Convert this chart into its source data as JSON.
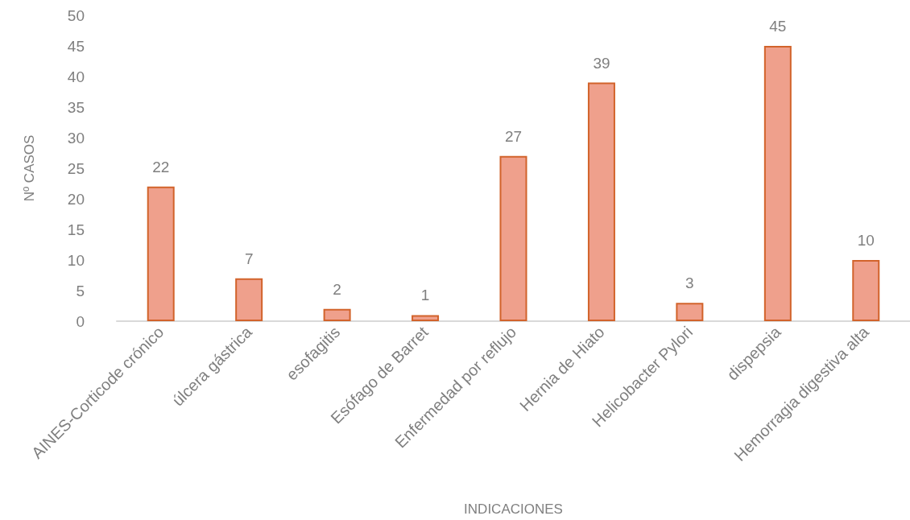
{
  "chart_data": {
    "type": "bar",
    "categories": [
      "AINES-Corticode crónico",
      "úlcera gástrica",
      "esofagitis",
      "Esófago de Barret",
      "Enfermedad por reflujo",
      "Hernia de Hiato",
      "Helicobacter Pylori",
      "dispepsia",
      "Hemorragia digestiva alta"
    ],
    "values": [
      22,
      7,
      2,
      1,
      27,
      39,
      3,
      45,
      10
    ],
    "color": "#efa08c",
    "xlabel": "INDICACIONES",
    "ylabel": "Nº CASOS",
    "ylim": [
      0,
      50
    ],
    "yticks": [
      0,
      5,
      10,
      15,
      20,
      25,
      30,
      35,
      40,
      45,
      50
    ],
    "grid": false,
    "data_labels": true
  }
}
